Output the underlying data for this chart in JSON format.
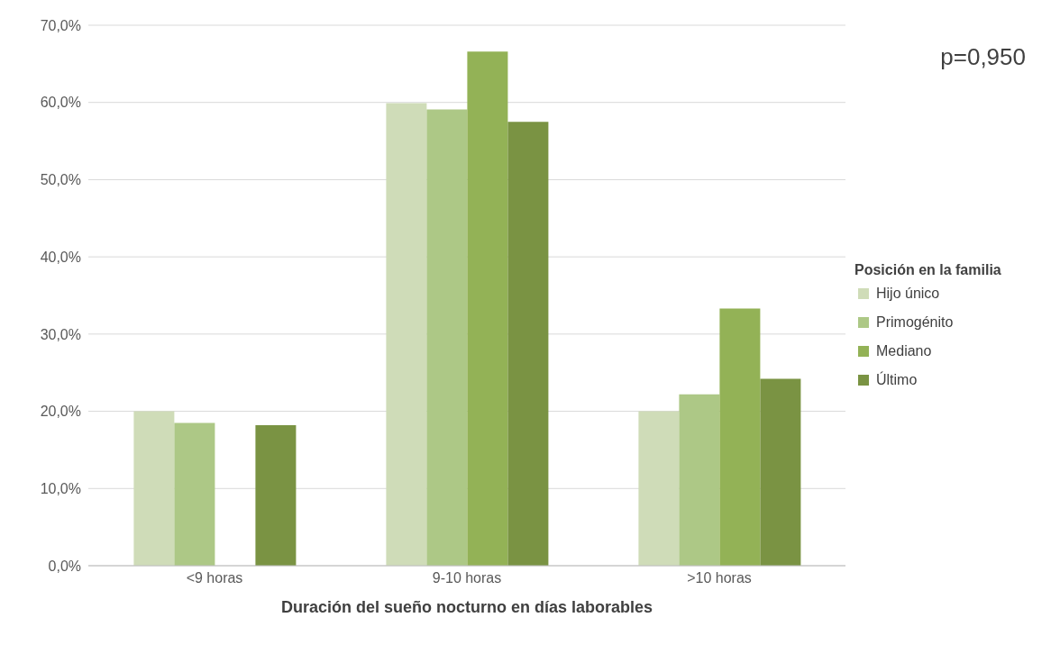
{
  "chart_data": {
    "type": "bar",
    "categories": [
      "<9 horas",
      "9-10 horas",
      ">10 horas"
    ],
    "xlabel": "Duración del sueño nocturno en días laborables",
    "legend_title": "Posición en la familia",
    "series": [
      {
        "name": "Hijo único",
        "color": "#cfdcb8",
        "values": [
          20.0,
          59.9,
          20.0
        ]
      },
      {
        "name": "Primogénito",
        "color": "#adc886",
        "values": [
          18.5,
          59.1,
          22.2
        ]
      },
      {
        "name": "Mediano",
        "color": "#93b256",
        "values": [
          0,
          66.6,
          33.3
        ]
      },
      {
        "name": "Último",
        "color": "#7a9343",
        "values": [
          18.2,
          57.5,
          24.2
        ]
      }
    ],
    "ylim": [
      0,
      70
    ],
    "yticks": [
      {
        "value": 0,
        "label": "0,0%"
      },
      {
        "value": 10,
        "label": "10,0%"
      },
      {
        "value": 20,
        "label": "20,0%"
      },
      {
        "value": 30,
        "label": "30,0%"
      },
      {
        "value": 40,
        "label": "40,0%"
      },
      {
        "value": 50,
        "label": "50,0%"
      },
      {
        "value": 60,
        "label": "60,0%"
      },
      {
        "value": 70,
        "label": "70,0%"
      }
    ],
    "grid": "y",
    "legend": "right",
    "annotations": [
      "p=0,950"
    ]
  }
}
